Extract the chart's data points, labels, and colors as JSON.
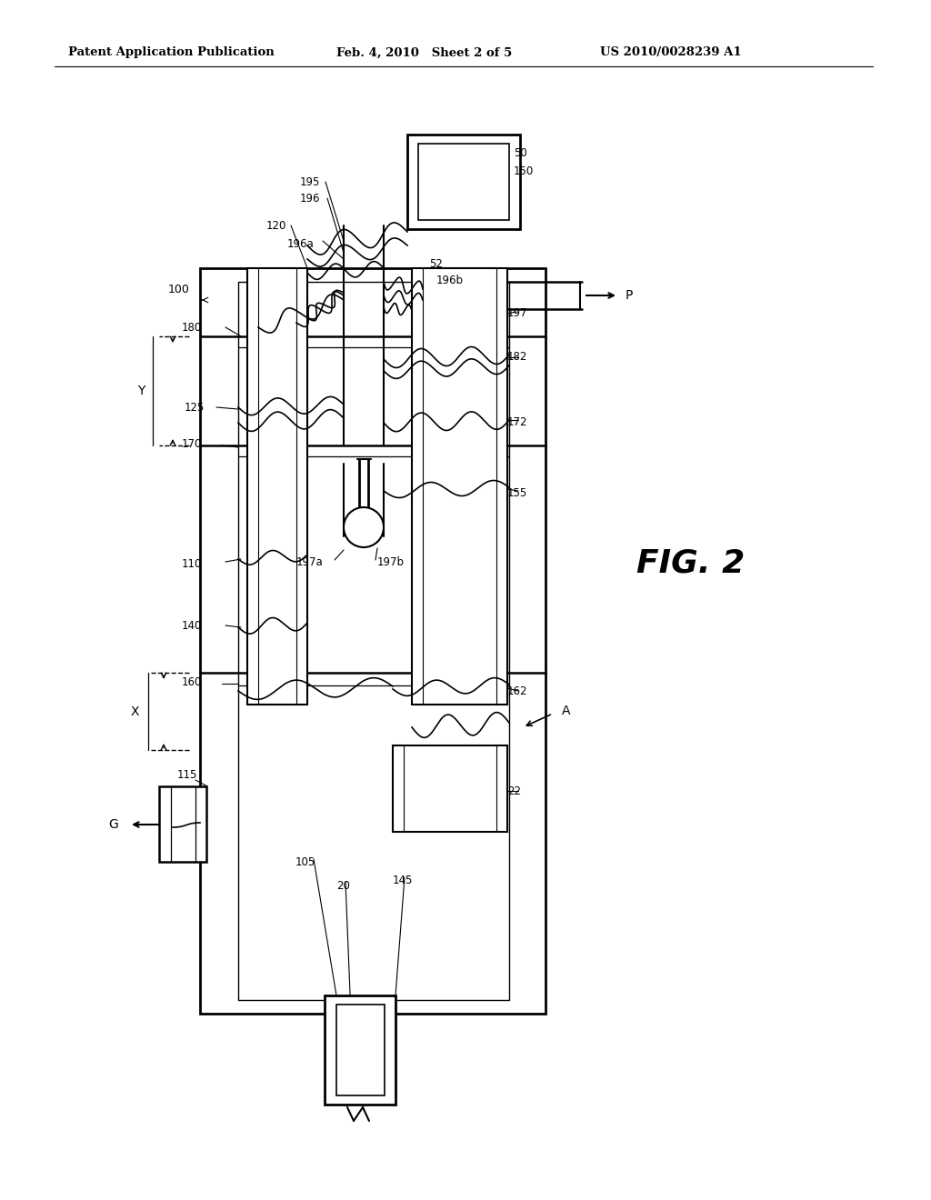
{
  "bg_color": "#ffffff",
  "line_color": "#000000",
  "header_left": "Patent Application Publication",
  "header_mid": "Feb. 4, 2010   Sheet 2 of 5",
  "header_right": "US 2010/0028239 A1",
  "fig_label": "FIG. 2"
}
